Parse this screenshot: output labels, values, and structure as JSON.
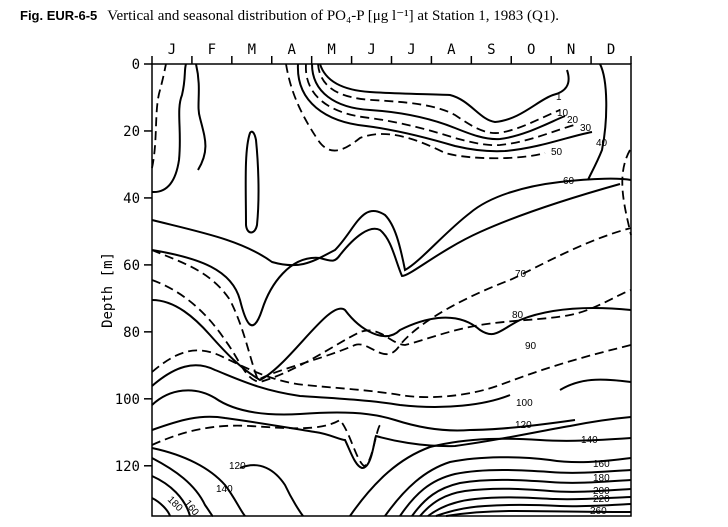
{
  "figure": {
    "label": "Fig. EUR-6-5",
    "caption": "Vertical and seasonal distribution of PO₄-P [μg l⁻¹] at Station 1, 1983 (Q1)."
  },
  "chart_data": {
    "type": "contour",
    "title": "Vertical and seasonal distribution of PO₄-P [μg l⁻¹] at Station 1, 1983 (Q1).",
    "xlabel": "",
    "ylabel": "Depth [m]",
    "x_ticks": [
      "J",
      "F",
      "M",
      "A",
      "M",
      "J",
      "J",
      "A",
      "S",
      "O",
      "N",
      "D"
    ],
    "y_ticks": [
      0,
      20,
      40,
      60,
      80,
      100,
      120
    ],
    "ylim": [
      0,
      135
    ],
    "y_inverted": true,
    "grid": false,
    "contour_levels": [
      1,
      10,
      20,
      30,
      40,
      50,
      60,
      70,
      80,
      90,
      100,
      120,
      140,
      160,
      180,
      200,
      220,
      260
    ],
    "contour_labels": [
      "1",
      "10",
      "20",
      "30",
      "40",
      "50",
      "60",
      "70",
      "80",
      "90",
      "100",
      "120",
      "140",
      "160",
      "180",
      "200",
      "220",
      "260",
      "120",
      "140",
      "160",
      "180"
    ],
    "line_styles": {
      "solid": "even-decade levels",
      "dashed": "intermediate levels"
    }
  }
}
